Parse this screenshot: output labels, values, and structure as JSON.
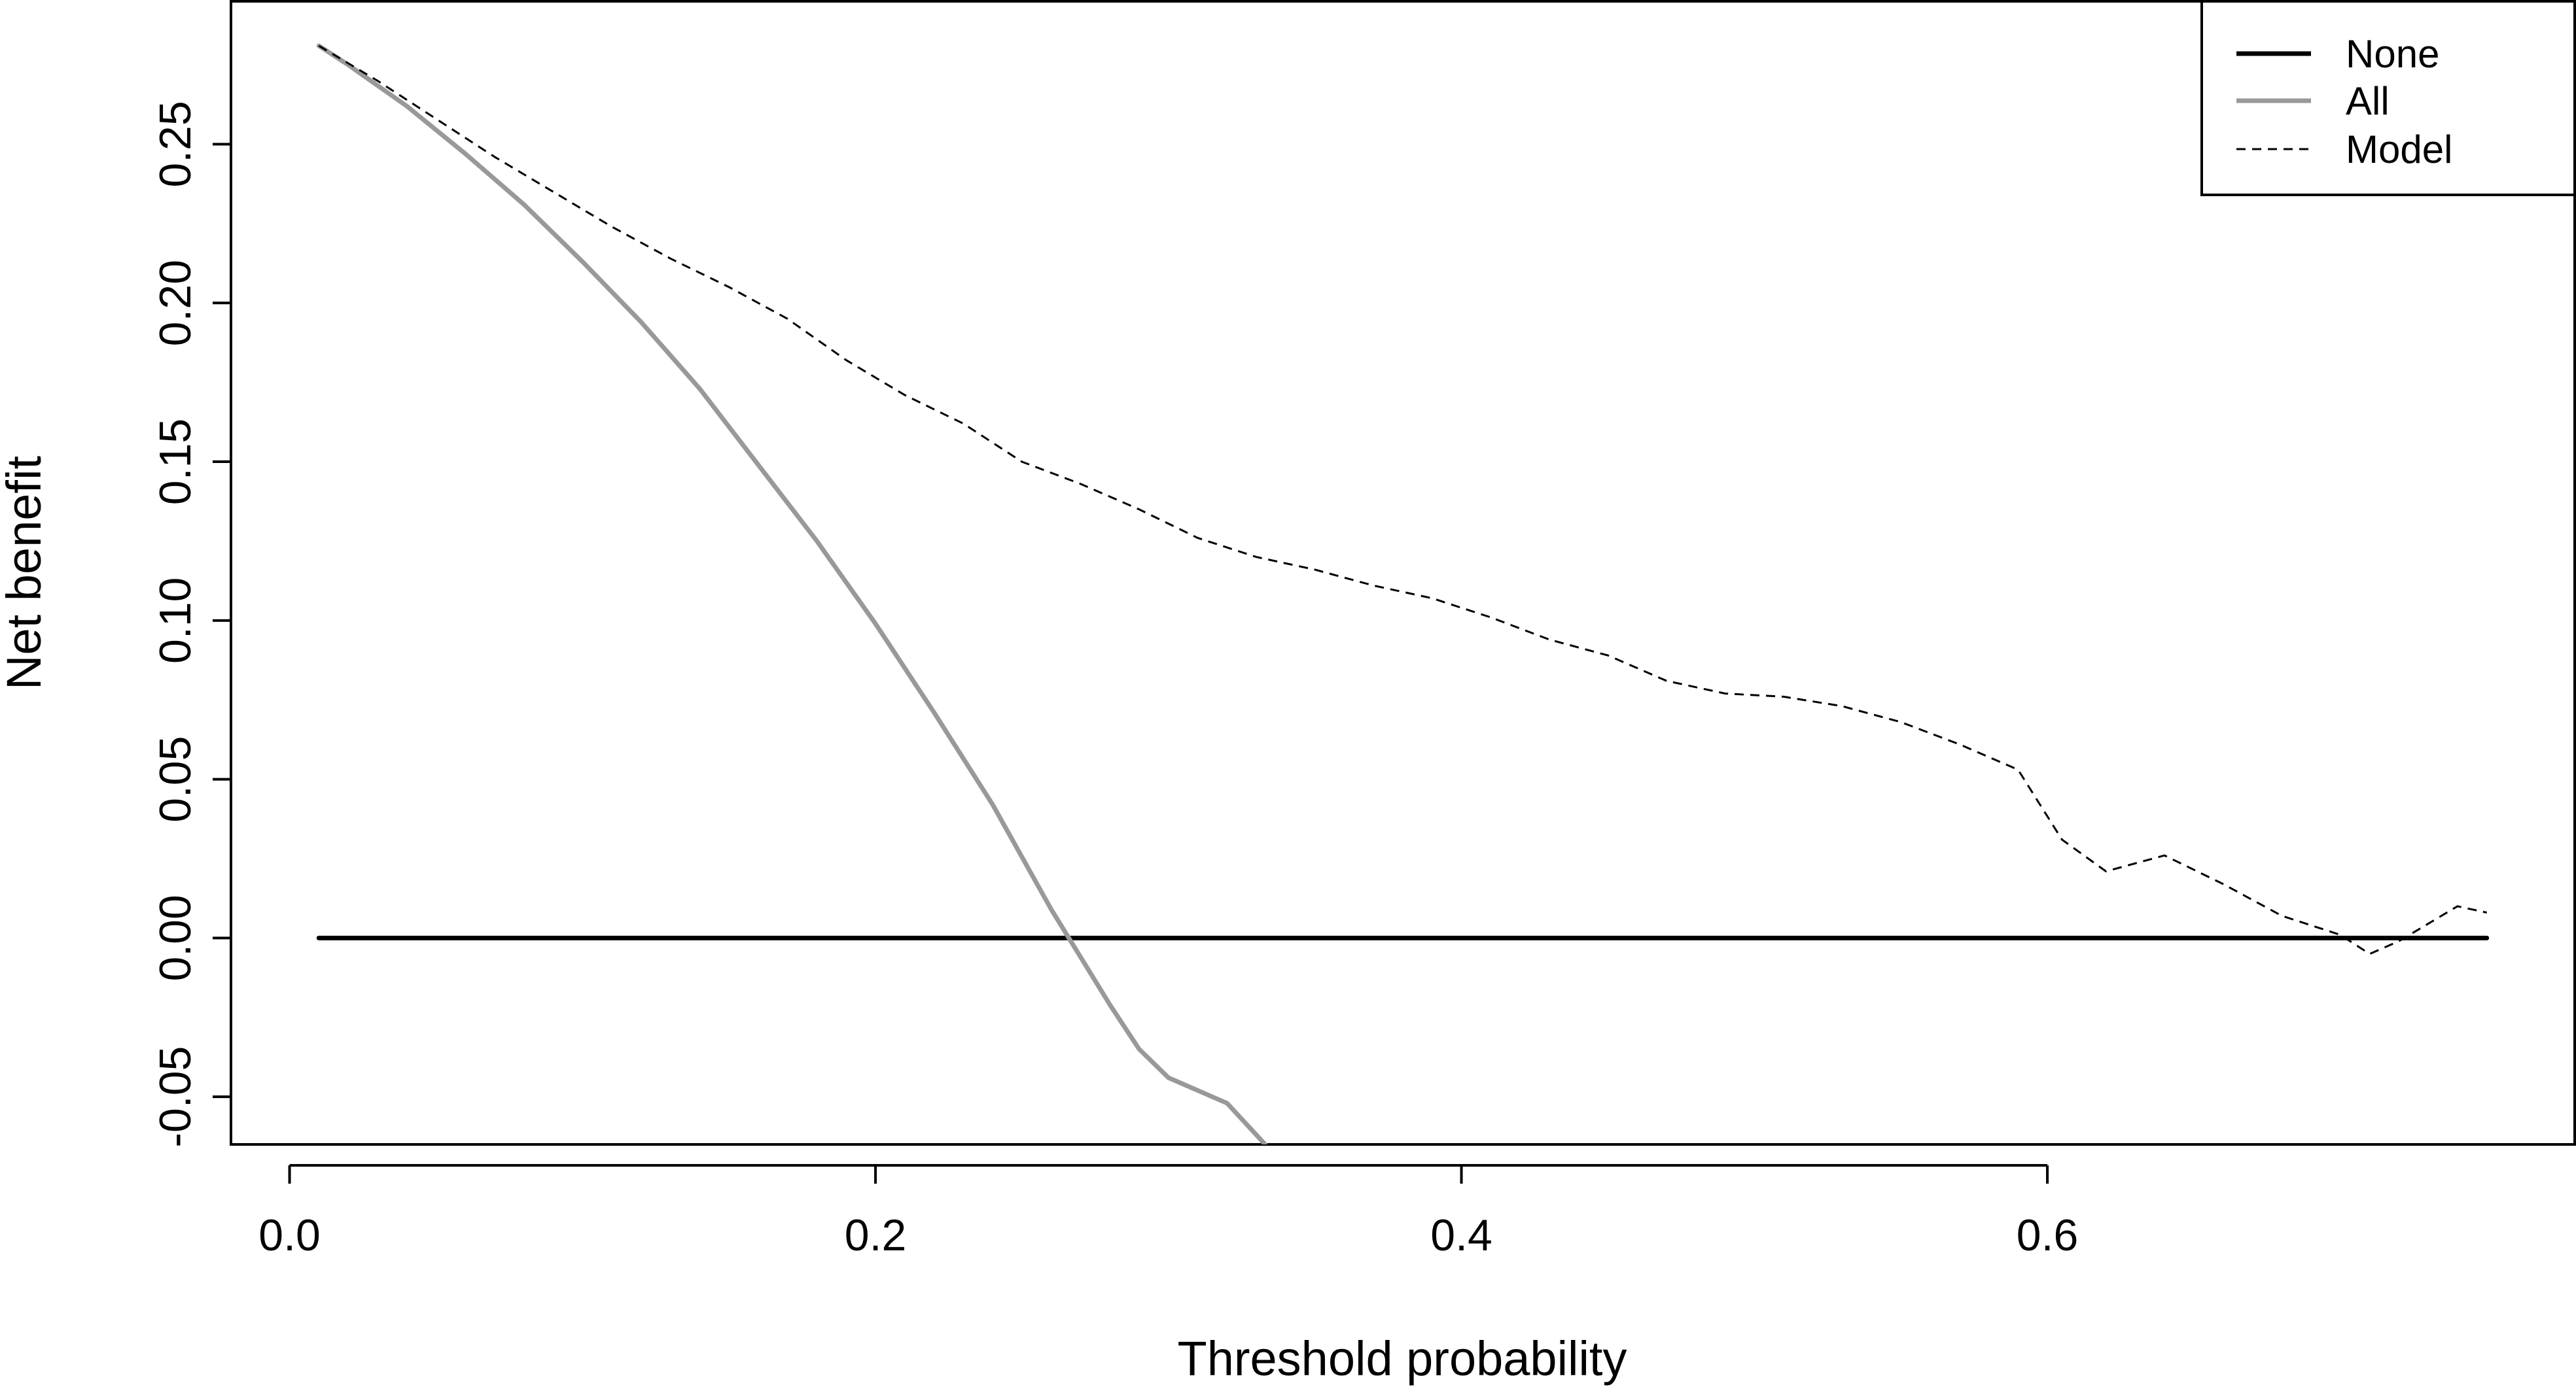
{
  "chart_data": {
    "type": "line",
    "xlabel": "Threshold probability",
    "ylabel": "Net benefit",
    "xlim": [
      -0.02,
      0.78
    ],
    "ylim": [
      -0.065,
      0.295
    ],
    "xticks": [
      0.0,
      0.2,
      0.4,
      0.6
    ],
    "xtick_labels": [
      "0.0",
      "0.2",
      "0.4",
      "0.6"
    ],
    "yticks": [
      -0.05,
      0.0,
      0.05,
      0.1,
      0.15,
      0.2,
      0.25
    ],
    "ytick_labels": [
      "-0.05",
      "0.00",
      "0.05",
      "0.10",
      "0.15",
      "0.20",
      "0.25"
    ],
    "grid": false,
    "legend_position": "top-right",
    "series": [
      {
        "name": "None",
        "color": "#000000",
        "style": "solid",
        "x": [
          0.01,
          0.75
        ],
        "y": [
          0.0,
          0.0
        ]
      },
      {
        "name": "All",
        "color": "#999999",
        "style": "solid",
        "x": [
          0.01,
          0.02,
          0.04,
          0.06,
          0.08,
          0.1,
          0.12,
          0.14,
          0.16,
          0.18,
          0.2,
          0.22,
          0.24,
          0.26,
          0.28,
          0.29,
          0.3,
          0.32,
          0.333
        ],
        "y": [
          0.281,
          0.275,
          0.262,
          0.247,
          0.231,
          0.213,
          0.194,
          0.173,
          0.149,
          0.125,
          0.099,
          0.071,
          0.042,
          0.009,
          -0.021,
          -0.035,
          -0.044,
          -0.052,
          -0.065
        ]
      },
      {
        "name": "Model",
        "color": "#000000",
        "style": "dashed",
        "x": [
          0.01,
          0.03,
          0.05,
          0.07,
          0.09,
          0.11,
          0.13,
          0.15,
          0.17,
          0.19,
          0.21,
          0.23,
          0.25,
          0.27,
          0.29,
          0.31,
          0.33,
          0.35,
          0.37,
          0.39,
          0.41,
          0.43,
          0.45,
          0.47,
          0.49,
          0.51,
          0.53,
          0.55,
          0.57,
          0.59,
          0.605,
          0.62,
          0.64,
          0.66,
          0.68,
          0.7,
          0.71,
          0.72,
          0.74,
          0.75
        ],
        "y": [
          0.281,
          0.27,
          0.258,
          0.246,
          0.235,
          0.224,
          0.214,
          0.205,
          0.195,
          0.182,
          0.171,
          0.162,
          0.15,
          0.143,
          0.135,
          0.126,
          0.12,
          0.116,
          0.111,
          0.107,
          0.101,
          0.094,
          0.089,
          0.081,
          0.077,
          0.076,
          0.073,
          0.068,
          0.061,
          0.053,
          0.031,
          0.021,
          0.026,
          0.017,
          0.007,
          0.001,
          -0.005,
          -0.001,
          0.01,
          0.008
        ]
      }
    ]
  }
}
